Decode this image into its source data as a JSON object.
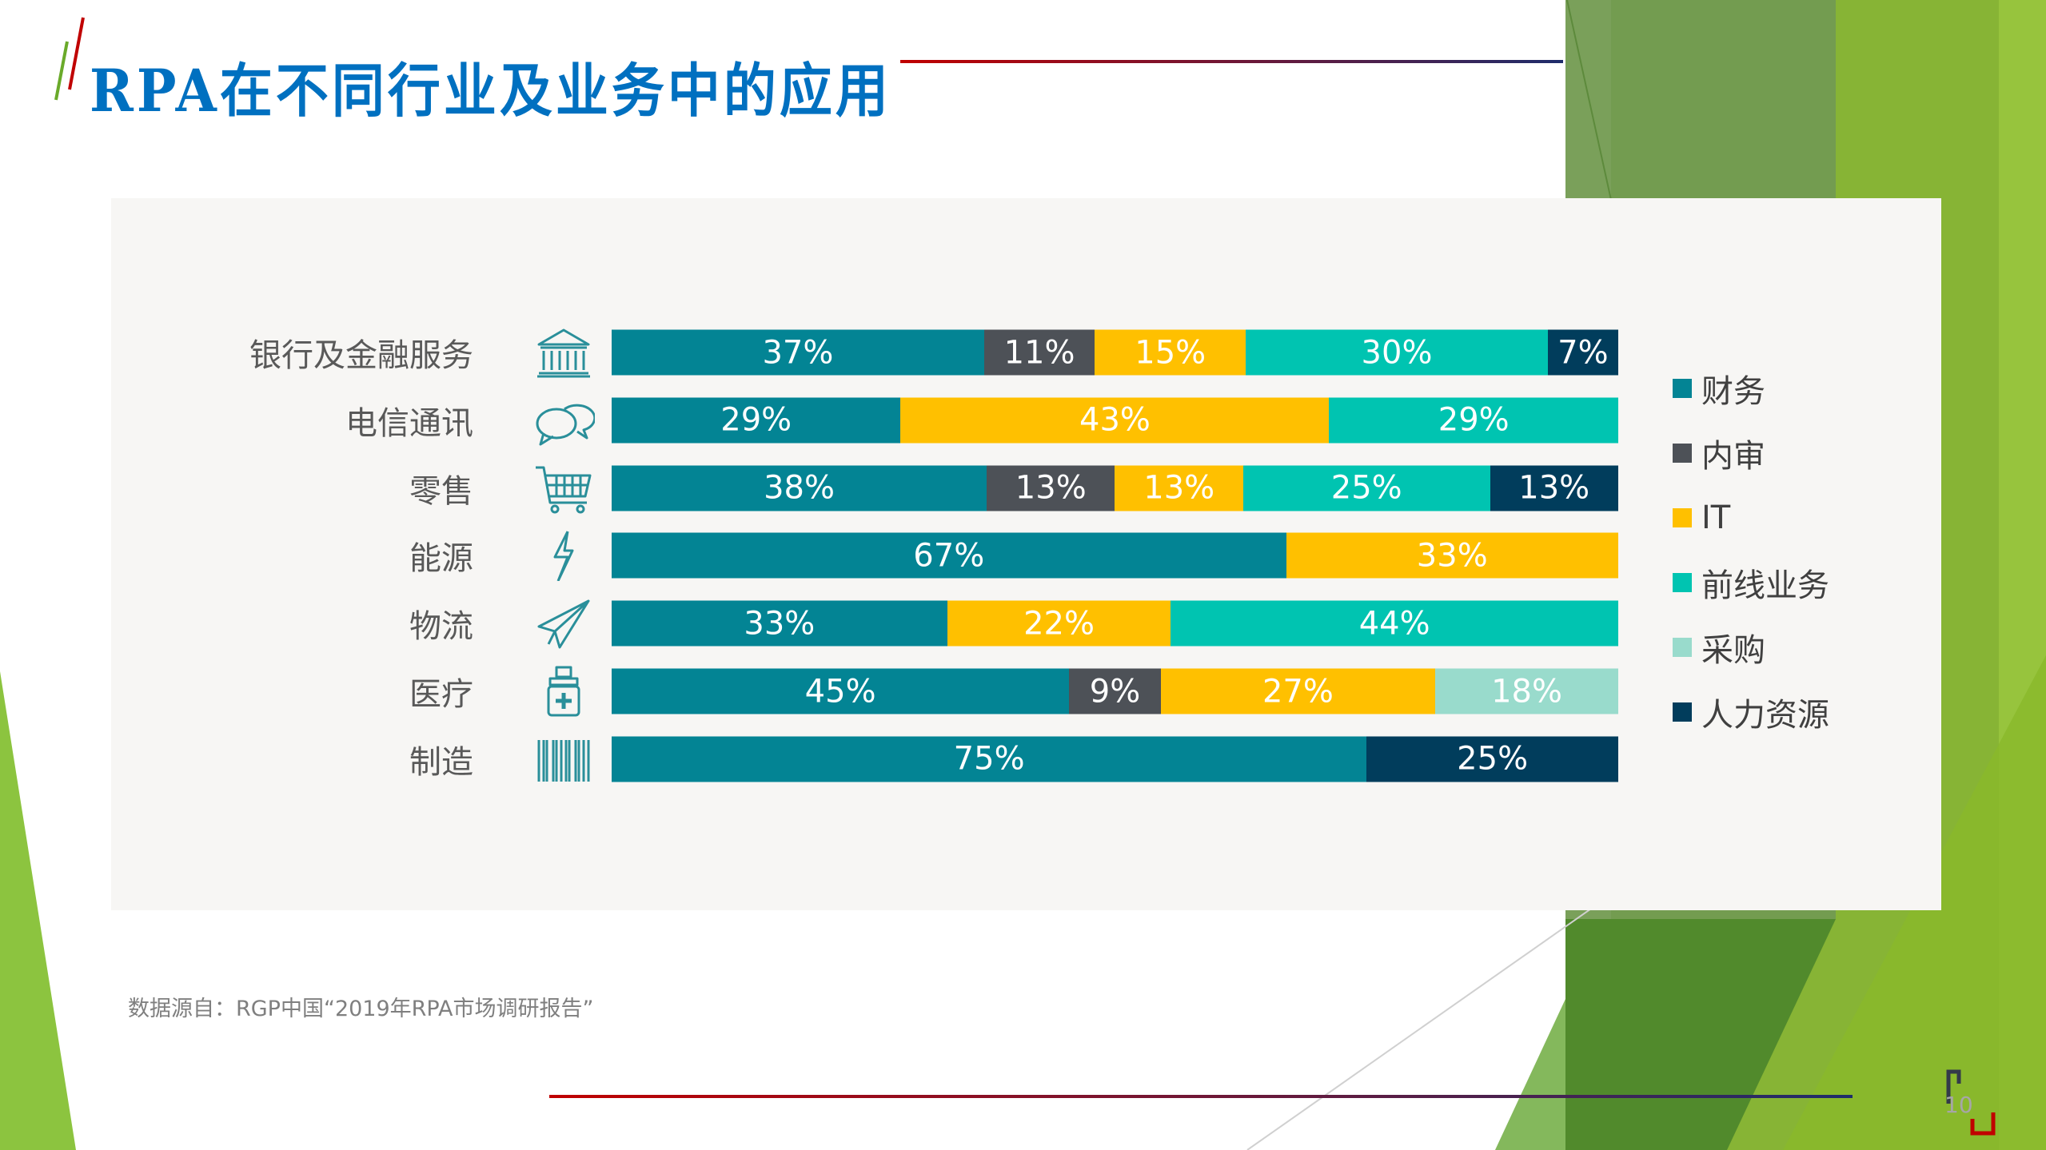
{
  "title": "RPA在不同行业及业务中的应用",
  "source": "数据源自：RGP中国“2019年RPA市场调研报告”",
  "page_number": "10",
  "colors": {
    "title": "#0070c0",
    "panel": "#f7f6f4"
  },
  "chart_data": {
    "type": "bar",
    "orientation": "horizontal-stacked-100",
    "categories": [
      "银行及金融服务",
      "电信通讯",
      "零售",
      "能源",
      "物流",
      "医疗",
      "制造"
    ],
    "category_icons": [
      "bank-icon",
      "chat-bubbles-icon",
      "shopping-cart-icon",
      "lightning-icon",
      "paper-plane-icon",
      "medicine-bottle-icon",
      "barcode-icon"
    ],
    "legend_position": "right",
    "series": [
      {
        "name": "财务",
        "color": "#038494",
        "values": [
          37,
          29,
          38,
          67,
          33,
          45,
          75
        ]
      },
      {
        "name": "内审",
        "color": "#4d5157",
        "values": [
          11,
          null,
          13,
          null,
          null,
          9,
          null
        ]
      },
      {
        "name": "IT",
        "color": "#ffc000",
        "values": [
          15,
          43,
          13,
          33,
          22,
          27,
          null
        ]
      },
      {
        "name": "前线业务",
        "color": "#00c4b1",
        "values": [
          30,
          29,
          25,
          null,
          44,
          null,
          null
        ]
      },
      {
        "name": "采购",
        "color": "#99dbcc",
        "values": [
          null,
          null,
          null,
          null,
          null,
          18,
          null
        ]
      },
      {
        "name": "人力资源",
        "color": "#013d5c",
        "values": [
          7,
          null,
          13,
          null,
          null,
          null,
          25
        ]
      }
    ]
  }
}
